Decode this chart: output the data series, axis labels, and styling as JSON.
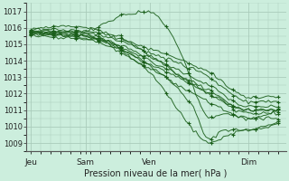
{
  "xlabel": "Pression niveau de la mer( hPa )",
  "bg_color": "#cceedd",
  "grid_color": "#aaccbb",
  "line_color": "#1a5e1a",
  "marker_color": "#1a5e1a",
  "ylim": [
    1008.5,
    1017.5
  ],
  "yticks": [
    1009,
    1010,
    1011,
    1012,
    1013,
    1014,
    1015,
    1016,
    1017
  ],
  "xtick_labels": [
    "Jeu",
    "Sam",
    "Ven",
    "Dim"
  ],
  "xtick_pos": [
    0.0,
    0.22,
    0.48,
    0.88
  ]
}
